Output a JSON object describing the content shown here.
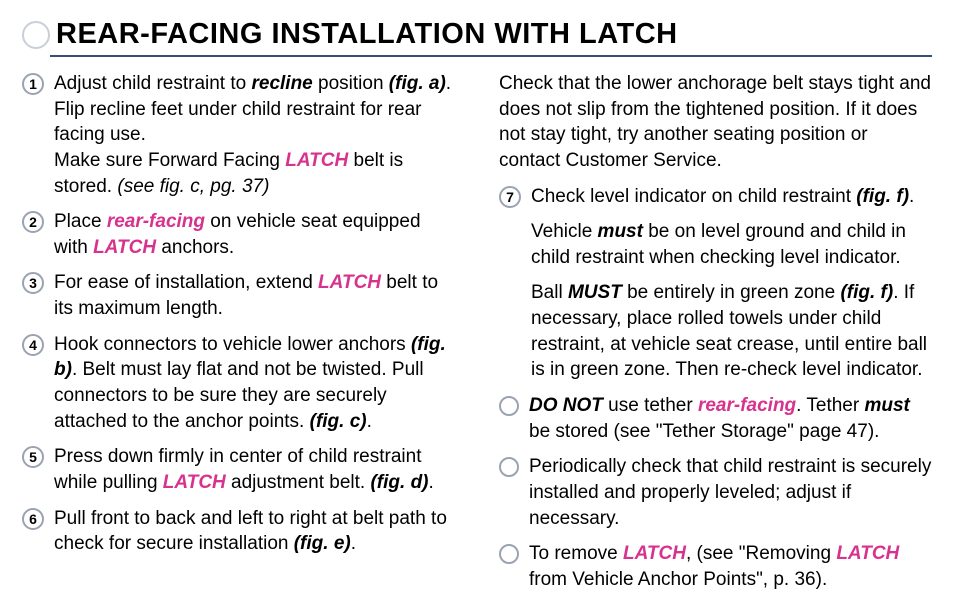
{
  "colors": {
    "accent": "#d8328f",
    "rule": "#384e7a",
    "ring": "#9aa3b2"
  },
  "title": "REAR-FACING INSTALLATION WITH LATCH",
  "left": [
    {
      "n": "1",
      "html": "Adjust child restraint to <span class='bi'>recline</span> position <span class='bi'>(fig. a)</span>. Flip recline feet under child restraint for rear facing use.<br>Make sure Forward Facing <span class='accent'>LATCH</span> belt is stored. <i>(see fig. c, pg. 37)</i>"
    },
    {
      "n": "2",
      "html": "Place <span class='accent'>rear-facing</span> on vehicle seat equipped with <span class='accent'>LATCH</span> anchors."
    },
    {
      "n": "3",
      "html": "For ease of installation, extend <span class='accent'>LATCH</span> belt to its maximum length."
    },
    {
      "n": "4",
      "html": "Hook connectors to vehicle lower anchors <span class='bi'>(fig. b)</span>. Belt must lay flat and not be twisted. Pull connectors to be sure they are securely attached to the anchor points. <span class='bi'>(fig. c)</span>."
    },
    {
      "n": "5",
      "html": "Press down firmly in center of child restraint while pulling <span class='accent'>LATCH</span> adjustment belt. <span class='bi'>(fig. d)</span>."
    },
    {
      "n": "6",
      "html": "Pull front to back and left to right at belt path to check for secure installation <span class='bi'>(fig. e)</span>."
    }
  ],
  "right_head": "Check that the lower anchorage belt stays tight and does not slip from the tightened position. If it does not stay tight, try another seating position or contact Customer Service.",
  "right_step7_n": "7",
  "right_step7": "Check level indicator on child restraint <span class='bi'>(fig. f)</span>.",
  "right_p1": "Vehicle <span class='bi'>must</span> be on level ground and child in child restraint when checking level indicator.",
  "right_p2": "Ball <span class='bi'>MUST</span> be entirely in green zone <span class='bi'>(fig. f)</span>. If necessary, place rolled towels under child restraint, at vehicle seat crease, until entire ball is in green zone.  Then re-check level indicator.",
  "right_bullets": [
    "<span class='bi'>DO NOT</span> use tether <span class='accent'>rear-facing</span>. Tether <span class='bi'>must</span> be stored (see \"Tether Storage\" page 47).",
    "Periodically check that child restraint is securely installed and properly leveled; adjust if necessary.",
    "To remove <span class='accent'>LATCH</span>, (see \"Removing <span class='accent'>LATCH</span> from Vehicle Anchor Points\", p. 36)."
  ]
}
